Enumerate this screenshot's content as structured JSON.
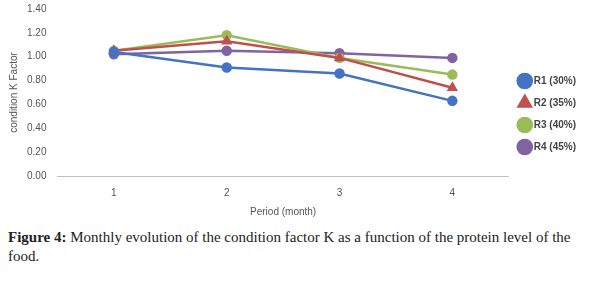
{
  "chart_data": {
    "type": "line",
    "caption": {
      "label": "Figure 4:",
      "text": "Monthly evolution of the condition factor K as a function of the protein level of the food."
    },
    "x_label": "Period (month)",
    "y_label": "condition K Factor",
    "categories": [
      "1",
      "2",
      "3",
      "4"
    ],
    "series": [
      {
        "name": "R1 (30%)",
        "color": "#4472c4",
        "marker": "circle",
        "values": [
          1.04,
          0.91,
          0.86,
          0.63
        ]
      },
      {
        "name": "R2 (35%)",
        "color": "#c0504d",
        "marker": "triangle",
        "values": [
          1.05,
          1.13,
          0.99,
          0.74
        ]
      },
      {
        "name": "R3 (40%)",
        "color": "#9bbb59",
        "marker": "circle",
        "values": [
          1.05,
          1.18,
          0.99,
          0.85
        ]
      },
      {
        "name": "R4 (45%)",
        "color": "#8064a2",
        "marker": "circle",
        "values": [
          1.02,
          1.05,
          1.03,
          0.99
        ]
      }
    ],
    "ylim": [
      0,
      1.4
    ],
    "yticks": [
      {
        "value": 0,
        "label": "0.00"
      },
      {
        "value": 0.2,
        "label": "0.20"
      },
      {
        "value": 0.4,
        "label": "0.40"
      },
      {
        "value": 0.6,
        "label": "0.60"
      },
      {
        "value": 0.8,
        "label": "0.80"
      },
      {
        "value": 1,
        "label": "1.00"
      },
      {
        "value": 1.2,
        "label": "1.20"
      },
      {
        "value": 1.4,
        "label": "1.40"
      }
    ],
    "grid": false,
    "legend": "right"
  }
}
